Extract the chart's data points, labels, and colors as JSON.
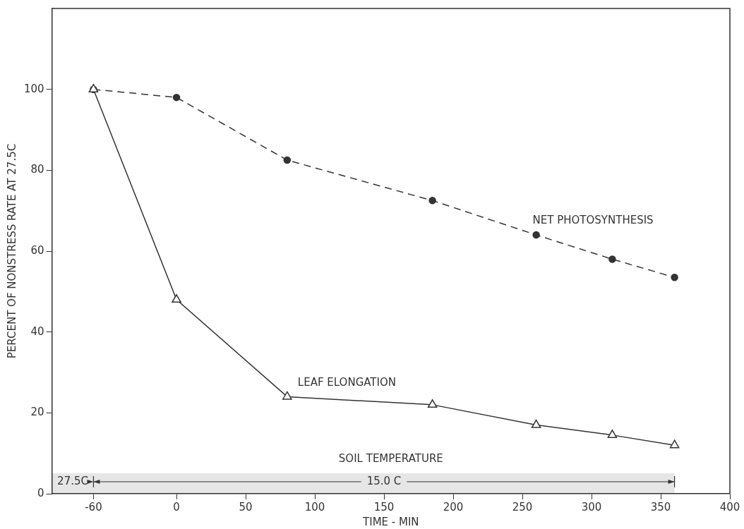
{
  "chart_data": {
    "type": "line",
    "xlabel": "TIME - MIN",
    "ylabel": "PERCENT OF NONSTRESS RATE AT 27.5C",
    "xlim": [
      -90,
      400
    ],
    "xticks": [
      -60,
      0,
      50,
      100,
      150,
      200,
      250,
      300,
      350,
      400
    ],
    "ylim": [
      0,
      120
    ],
    "yticks": [
      0,
      20,
      40,
      60,
      80,
      100
    ],
    "grid": false,
    "legend": false,
    "series": [
      {
        "name": "NET PHOTOSYNTHESIS",
        "color": "#333333",
        "line_style": "dashed",
        "marker": "circle",
        "x": [
          -60,
          0,
          80,
          185,
          260,
          315,
          360
        ],
        "values": [
          100,
          98,
          82.5,
          72.5,
          64,
          58,
          53.5
        ]
      },
      {
        "name": "LEAF ELONGATION",
        "color": "#333333",
        "line_style": "solid",
        "marker": "triangle",
        "x": [
          -60,
          0,
          80,
          185,
          260,
          315,
          360
        ],
        "values": [
          100,
          48,
          24,
          22,
          17,
          14.5,
          12
        ]
      }
    ],
    "bands": [
      {
        "axis": "x",
        "from": -90,
        "to": -60,
        "label": "27.5C"
      },
      {
        "axis": "x",
        "from": -60,
        "to": 360,
        "label": "15.0 C"
      }
    ],
    "annotations": [
      "SOIL TEMPERATURE"
    ]
  }
}
